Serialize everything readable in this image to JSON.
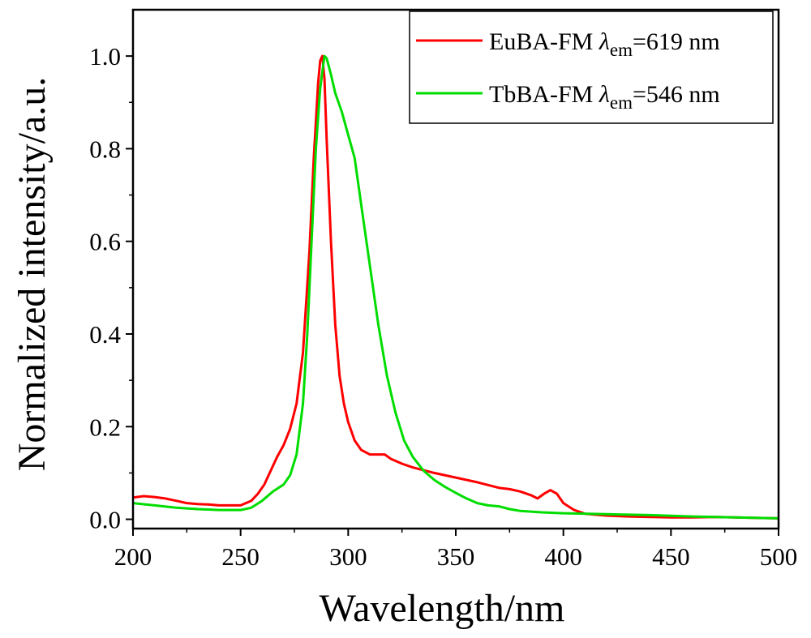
{
  "chart_data": {
    "type": "line",
    "xlabel": "Wavelength/nm",
    "ylabel": "Normalized intensity/a.u.",
    "xlim": [
      200,
      500
    ],
    "ylim": [
      -0.02,
      1.1
    ],
    "x_ticks": [
      200,
      250,
      300,
      350,
      400,
      450,
      500
    ],
    "x_tick_labels": [
      "200",
      "250",
      "300",
      "350",
      "400",
      "450",
      "500"
    ],
    "y_ticks": [
      0.0,
      0.2,
      0.4,
      0.6,
      0.8,
      1.0
    ],
    "y_tick_labels": [
      "0.0",
      "0.2",
      "0.4",
      "0.6",
      "0.8",
      "1.0"
    ],
    "grid": false,
    "legend_position": "top-right",
    "series": [
      {
        "name": "EuBA-FM",
        "legend_prefix": "EuBA-FM ",
        "legend_symbol": "λ",
        "legend_subscript": "em",
        "legend_suffix": "=619 nm",
        "color": "#ff0000",
        "points": [
          [
            200,
            0.047
          ],
          [
            205,
            0.05
          ],
          [
            210,
            0.048
          ],
          [
            215,
            0.045
          ],
          [
            220,
            0.04
          ],
          [
            225,
            0.035
          ],
          [
            230,
            0.033
          ],
          [
            235,
            0.032
          ],
          [
            240,
            0.03
          ],
          [
            245,
            0.03
          ],
          [
            250,
            0.03
          ],
          [
            255,
            0.04
          ],
          [
            258,
            0.055
          ],
          [
            261,
            0.075
          ],
          [
            264,
            0.105
          ],
          [
            267,
            0.135
          ],
          [
            270,
            0.16
          ],
          [
            273,
            0.195
          ],
          [
            276,
            0.25
          ],
          [
            279,
            0.36
          ],
          [
            282,
            0.58
          ],
          [
            284,
            0.78
          ],
          [
            286,
            0.94
          ],
          [
            287,
            0.99
          ],
          [
            288,
            1.0
          ],
          [
            289,
            0.95
          ],
          [
            290,
            0.82
          ],
          [
            292,
            0.6
          ],
          [
            294,
            0.42
          ],
          [
            296,
            0.31
          ],
          [
            298,
            0.25
          ],
          [
            300,
            0.21
          ],
          [
            303,
            0.17
          ],
          [
            306,
            0.15
          ],
          [
            310,
            0.14
          ],
          [
            314,
            0.14
          ],
          [
            317,
            0.14
          ],
          [
            320,
            0.13
          ],
          [
            325,
            0.12
          ],
          [
            330,
            0.112
          ],
          [
            340,
            0.1
          ],
          [
            350,
            0.09
          ],
          [
            360,
            0.08
          ],
          [
            370,
            0.068
          ],
          [
            375,
            0.065
          ],
          [
            380,
            0.06
          ],
          [
            385,
            0.052
          ],
          [
            388,
            0.045
          ],
          [
            391,
            0.055
          ],
          [
            394,
            0.063
          ],
          [
            397,
            0.055
          ],
          [
            400,
            0.035
          ],
          [
            405,
            0.02
          ],
          [
            410,
            0.012
          ],
          [
            420,
            0.008
          ],
          [
            430,
            0.006
          ],
          [
            450,
            0.004
          ],
          [
            460,
            0.004
          ],
          [
            470,
            0.005
          ],
          [
            480,
            0.004
          ],
          [
            490,
            0.003
          ],
          [
            500,
            0.002
          ]
        ]
      },
      {
        "name": "TbBA-FM",
        "legend_prefix": "TbBA-FM ",
        "legend_symbol": "λ",
        "legend_subscript": "em",
        "legend_suffix": "=546 nm",
        "color": "#00dd00",
        "points": [
          [
            200,
            0.035
          ],
          [
            210,
            0.03
          ],
          [
            220,
            0.025
          ],
          [
            230,
            0.022
          ],
          [
            240,
            0.02
          ],
          [
            250,
            0.02
          ],
          [
            255,
            0.025
          ],
          [
            260,
            0.04
          ],
          [
            265,
            0.06
          ],
          [
            270,
            0.075
          ],
          [
            273,
            0.095
          ],
          [
            276,
            0.14
          ],
          [
            279,
            0.25
          ],
          [
            281,
            0.4
          ],
          [
            283,
            0.6
          ],
          [
            285,
            0.8
          ],
          [
            287,
            0.93
          ],
          [
            289,
            1.0
          ],
          [
            290,
            0.995
          ],
          [
            292,
            0.96
          ],
          [
            294,
            0.92
          ],
          [
            297,
            0.88
          ],
          [
            300,
            0.83
          ],
          [
            303,
            0.78
          ],
          [
            306,
            0.68
          ],
          [
            310,
            0.55
          ],
          [
            314,
            0.42
          ],
          [
            318,
            0.31
          ],
          [
            322,
            0.23
          ],
          [
            326,
            0.17
          ],
          [
            330,
            0.135
          ],
          [
            335,
            0.105
          ],
          [
            340,
            0.085
          ],
          [
            345,
            0.07
          ],
          [
            350,
            0.057
          ],
          [
            355,
            0.045
          ],
          [
            360,
            0.035
          ],
          [
            365,
            0.03
          ],
          [
            370,
            0.028
          ],
          [
            375,
            0.022
          ],
          [
            380,
            0.018
          ],
          [
            390,
            0.015
          ],
          [
            400,
            0.013
          ],
          [
            420,
            0.011
          ],
          [
            440,
            0.009
          ],
          [
            460,
            0.006
          ],
          [
            480,
            0.004
          ],
          [
            500,
            0.002
          ]
        ]
      }
    ]
  }
}
